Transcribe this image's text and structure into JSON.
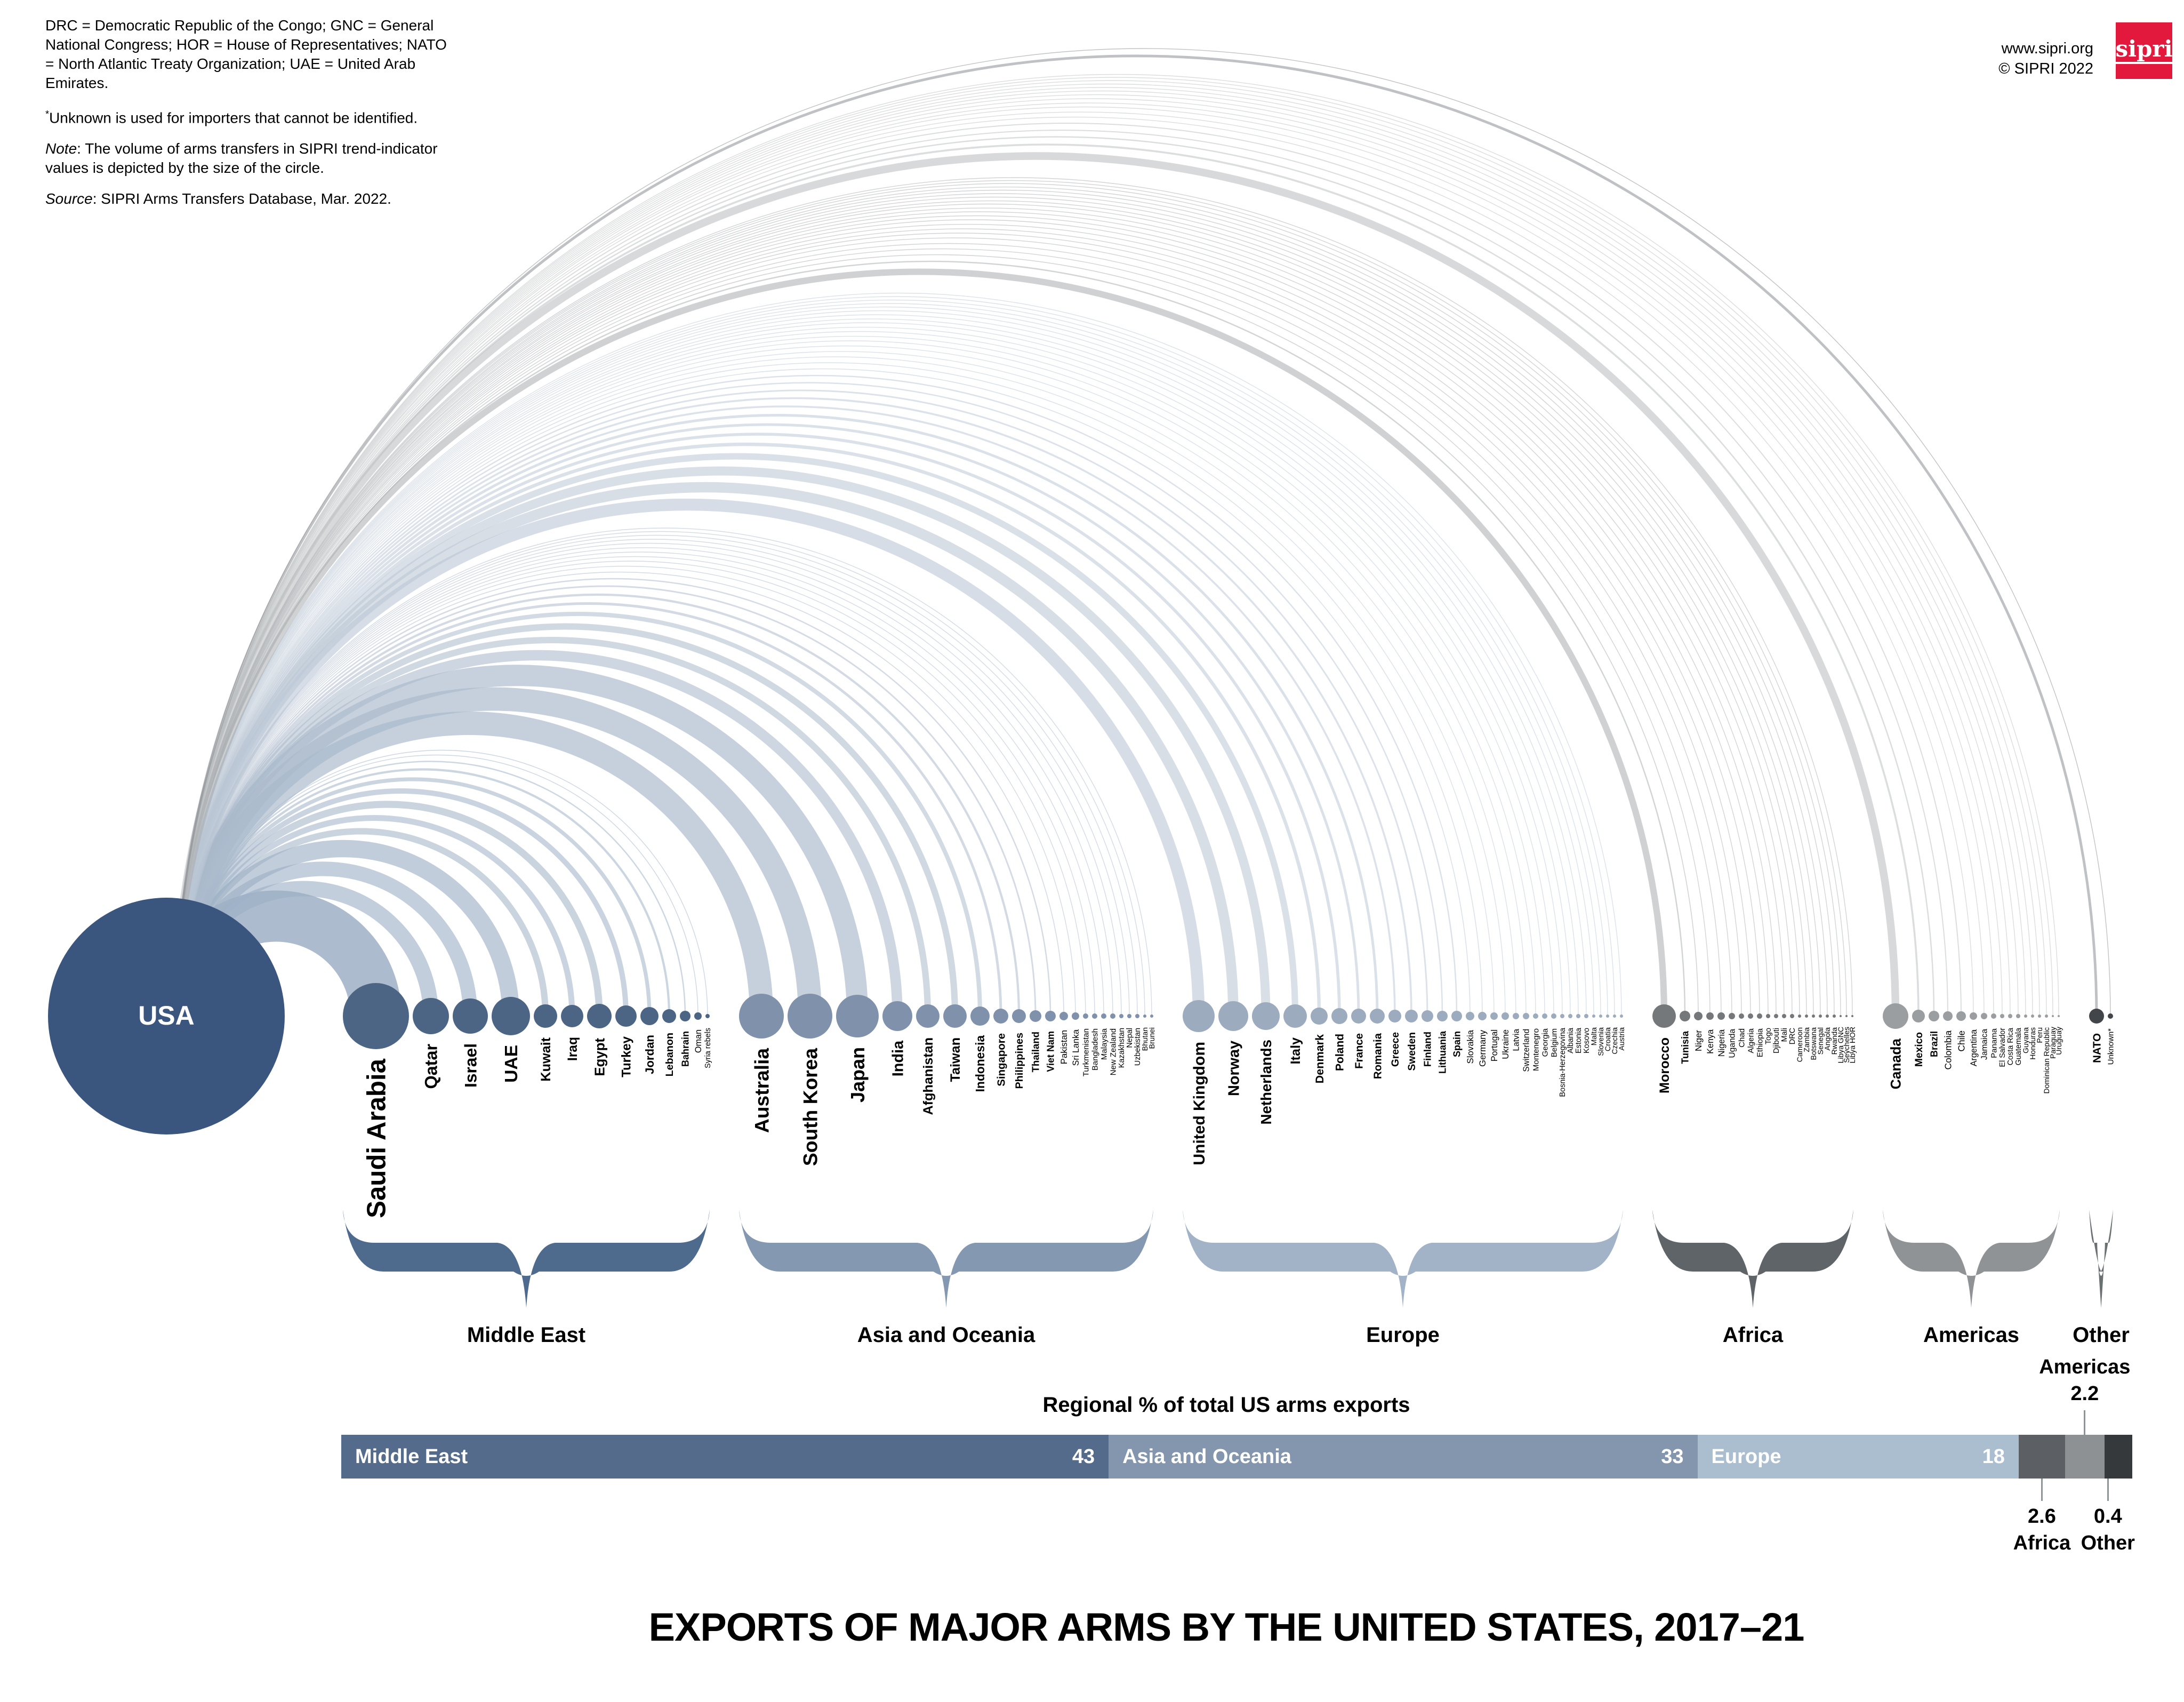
{
  "header": {
    "notes": [
      {
        "text": "DRC = Democratic Republic of the Congo; GNC = General National Congress; HOR = House of Representatives; NATO = North Atlantic Treaty Organization; UAE = United Arab Emirates."
      },
      {
        "sup": "*",
        "text": "Unknown is used for importers that cannot be identified."
      },
      {
        "em": "Note",
        "text": ": The volume of arms transfers in SIPRI trend-indicator values is depicted by the size of the circle."
      },
      {
        "em": "Source",
        "text": ": SIPRI Arms Transfers Database, Mar. 2022."
      }
    ],
    "website": "www.sipri.org",
    "copyright": "© SIPRI 2022",
    "logo_text": "sipri",
    "logo_color": "#e2183d"
  },
  "exporter": {
    "label": "USA",
    "color": "#3b567e"
  },
  "chart_data": [
    {
      "type": "arc-diagram",
      "title": "US exports of major arms by importer, 2017-21",
      "exporter": "USA",
      "size_encoding": "circle size = volume of arms transfers in SIPRI trend-indicator values",
      "regions": [
        {
          "name": "Middle East",
          "color": "#4c6585",
          "arc_color": "#9db0c5",
          "brace_color": "#4e6a8c",
          "countries": [
            {
              "name": "Saudi Arabia",
              "r": 62
            },
            {
              "name": "Qatar",
              "r": 34
            },
            {
              "name": "Israel",
              "r": 33
            },
            {
              "name": "UAE",
              "r": 36
            },
            {
              "name": "Kuwait",
              "r": 22
            },
            {
              "name": "Iraq",
              "r": 21
            },
            {
              "name": "Egypt",
              "r": 23
            },
            {
              "name": "Turkey",
              "r": 20
            },
            {
              "name": "Jordan",
              "r": 17
            },
            {
              "name": "Lebanon",
              "r": 13
            },
            {
              "name": "Bahrain",
              "r": 10
            },
            {
              "name": "Oman",
              "r": 7
            },
            {
              "name": "Syria rebels",
              "r": 4
            }
          ]
        },
        {
          "name": "Asia and Oceania",
          "color": "#8092ab",
          "arc_color": "#aab9cb",
          "brace_color": "#8499b1",
          "countries": [
            {
              "name": "Australia",
              "r": 42
            },
            {
              "name": "South Korea",
              "r": 42
            },
            {
              "name": "Japan",
              "r": 40
            },
            {
              "name": "India",
              "r": 28
            },
            {
              "name": "Afghanistan",
              "r": 22
            },
            {
              "name": "Taiwan",
              "r": 22
            },
            {
              "name": "Indonesia",
              "r": 18
            },
            {
              "name": "Singapore",
              "r": 14
            },
            {
              "name": "Philippines",
              "r": 13
            },
            {
              "name": "Thailand",
              "r": 11
            },
            {
              "name": "Viet Nam",
              "r": 10
            },
            {
              "name": "Pakistan",
              "r": 8
            },
            {
              "name": "Sri Lanka",
              "r": 7
            },
            {
              "name": "Turkmenistan",
              "r": 5
            },
            {
              "name": "Bangladesh",
              "r": 5
            },
            {
              "name": "Malaysia",
              "r": 5
            },
            {
              "name": "New Zealand",
              "r": 5
            },
            {
              "name": "Kazakhstan",
              "r": 4
            },
            {
              "name": "Nepal",
              "r": 4
            },
            {
              "name": "Uzbekistan",
              "r": 4
            },
            {
              "name": "Bhutan",
              "r": 3
            },
            {
              "name": "Brunei",
              "r": 3
            }
          ]
        },
        {
          "name": "Europe",
          "color": "#9dabbe",
          "arc_color": "#bac6d4",
          "brace_color": "#a3b3c7",
          "countries": [
            {
              "name": "United Kingdom",
              "r": 30
            },
            {
              "name": "Norway",
              "r": 28
            },
            {
              "name": "Netherlands",
              "r": 26
            },
            {
              "name": "Italy",
              "r": 22
            },
            {
              "name": "Denmark",
              "r": 16
            },
            {
              "name": "Poland",
              "r": 15
            },
            {
              "name": "France",
              "r": 14
            },
            {
              "name": "Romania",
              "r": 14
            },
            {
              "name": "Greece",
              "r": 12
            },
            {
              "name": "Sweden",
              "r": 12
            },
            {
              "name": "Finland",
              "r": 11
            },
            {
              "name": "Lithuania",
              "r": 10
            },
            {
              "name": "Spain",
              "r": 10
            },
            {
              "name": "Slovakia",
              "r": 8
            },
            {
              "name": "Germany",
              "r": 8
            },
            {
              "name": "Portugal",
              "r": 7
            },
            {
              "name": "Ukraine",
              "r": 7
            },
            {
              "name": "Latvia",
              "r": 6
            },
            {
              "name": "Switzerland",
              "r": 6
            },
            {
              "name": "Montenegro",
              "r": 5
            },
            {
              "name": "Georgia",
              "r": 5
            },
            {
              "name": "Belgium",
              "r": 5
            },
            {
              "name": "Bosnia-Herzegovina",
              "r": 4
            },
            {
              "name": "Albania",
              "r": 4
            },
            {
              "name": "Estonia",
              "r": 4
            },
            {
              "name": "Kosovo",
              "r": 4
            },
            {
              "name": "Malta",
              "r": 3
            },
            {
              "name": "Slovenia",
              "r": 3
            },
            {
              "name": "Croatia",
              "r": 3
            },
            {
              "name": "Czechia",
              "r": 3
            },
            {
              "name": "Austria",
              "r": 3
            }
          ]
        },
        {
          "name": "Africa",
          "color": "#74787b",
          "arc_color": "#a7abae",
          "brace_color": "#5f6468",
          "countries": [
            {
              "name": "Morocco",
              "r": 22
            },
            {
              "name": "Tunisia",
              "r": 10
            },
            {
              "name": "Niger",
              "r": 8
            },
            {
              "name": "Kenya",
              "r": 7
            },
            {
              "name": "Nigeria",
              "r": 7
            },
            {
              "name": "Uganda",
              "r": 6
            },
            {
              "name": "Chad",
              "r": 5
            },
            {
              "name": "Algeria",
              "r": 5
            },
            {
              "name": "Ethiopia",
              "r": 5
            },
            {
              "name": "Togo",
              "r": 4
            },
            {
              "name": "Djibouti",
              "r": 4
            },
            {
              "name": "Mali",
              "r": 4
            },
            {
              "name": "DRC",
              "r": 4
            },
            {
              "name": "Cameroon",
              "r": 3
            },
            {
              "name": "Zambia",
              "r": 3
            },
            {
              "name": "Botswana",
              "r": 3
            },
            {
              "name": "Senegal",
              "r": 3
            },
            {
              "name": "Angola",
              "r": 3
            },
            {
              "name": "Rwanda",
              "r": 3
            },
            {
              "name": "Libya GNC",
              "r": 2
            },
            {
              "name": "Seychelles",
              "r": 2
            },
            {
              "name": "Libya HOR",
              "r": 2
            }
          ]
        },
        {
          "name": "Americas",
          "color": "#9a9ea1",
          "arc_color": "#b9bcbf",
          "brace_color": "#8f9396",
          "countries": [
            {
              "name": "Canada",
              "r": 24
            },
            {
              "name": "Mexico",
              "r": 12
            },
            {
              "name": "Brazil",
              "r": 10
            },
            {
              "name": "Colombia",
              "r": 9
            },
            {
              "name": "Chile",
              "r": 9
            },
            {
              "name": "Argentina",
              "r": 7
            },
            {
              "name": "Jamaica",
              "r": 6
            },
            {
              "name": "Panama",
              "r": 5
            },
            {
              "name": "El Salvador",
              "r": 4
            },
            {
              "name": "Costa Rica",
              "r": 4
            },
            {
              "name": "Guatemala",
              "r": 4
            },
            {
              "name": "Guyana",
              "r": 3
            },
            {
              "name": "Honduras",
              "r": 3
            },
            {
              "name": "Peru",
              "r": 3
            },
            {
              "name": "Dominican Republic",
              "r": 3
            },
            {
              "name": "Paraguay",
              "r": 2
            },
            {
              "name": "Uruguay",
              "r": 2
            }
          ]
        },
        {
          "name": "Other",
          "color": "#42464a",
          "arc_color": "#85898d",
          "brace_color": "#6b7073",
          "countries": [
            {
              "name": "NATO",
              "r": 14
            },
            {
              "name": "Unknown*",
              "r": 5
            }
          ]
        }
      ]
    },
    {
      "type": "bar",
      "stacked": true,
      "title": "Regional % of total US arms exports",
      "segments": [
        {
          "label": "Middle East",
          "value": 43,
          "color": "#546b8b",
          "label_inside": true
        },
        {
          "label": "Asia and Oceania",
          "value": 33,
          "color": "#8396ad",
          "label_inside": true
        },
        {
          "label": "Europe",
          "value": 18,
          "color": "#abbecf",
          "label_inside": true
        },
        {
          "label": "Africa",
          "value": 2.6,
          "color": "#5c6064",
          "callout": "below"
        },
        {
          "label": "Americas",
          "value": 2.2,
          "color": "#8d9194",
          "callout": "above"
        },
        {
          "label": "Other",
          "value": 0.4,
          "color": "#36393c",
          "callout": "below"
        }
      ]
    }
  ],
  "footer": {
    "title": "EXPORTS OF MAJOR ARMS BY THE UNITED STATES, 2017–21"
  }
}
